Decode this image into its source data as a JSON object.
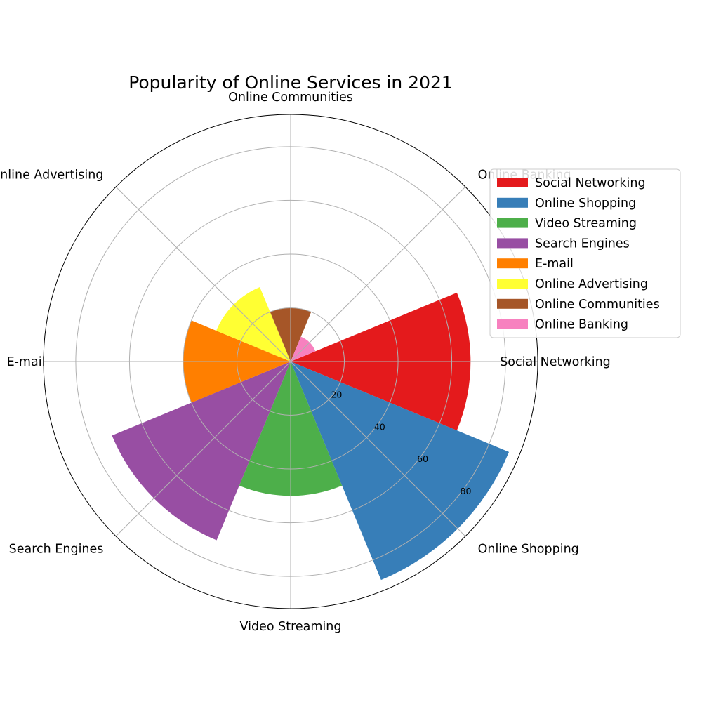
{
  "chart_data": {
    "type": "polar-bar",
    "title": "Popularity of Online Services in 2021",
    "categories": [
      "Social Networking",
      "Online Shopping",
      "Video Streaming",
      "Search Engines",
      "E-mail",
      "Online Advertising",
      "Online Communities",
      "Online Banking"
    ],
    "values": [
      67,
      88,
      50,
      72,
      40,
      30,
      20,
      10
    ],
    "colors": [
      "#e41a1c",
      "#377eb8",
      "#4daf4a",
      "#984ea3",
      "#ff7f00",
      "#ffff33",
      "#a65628",
      "#f781bf"
    ],
    "radial_ticks": [
      20,
      40,
      60,
      80
    ],
    "rlim": [
      0,
      92
    ],
    "grid": true,
    "legend_position": "right",
    "legend": [
      "Social Networking",
      "Online Shopping",
      "Video Streaming",
      "Search Engines",
      "E-mail",
      "Online Advertising",
      "Online Communities",
      "Online Banking"
    ]
  }
}
